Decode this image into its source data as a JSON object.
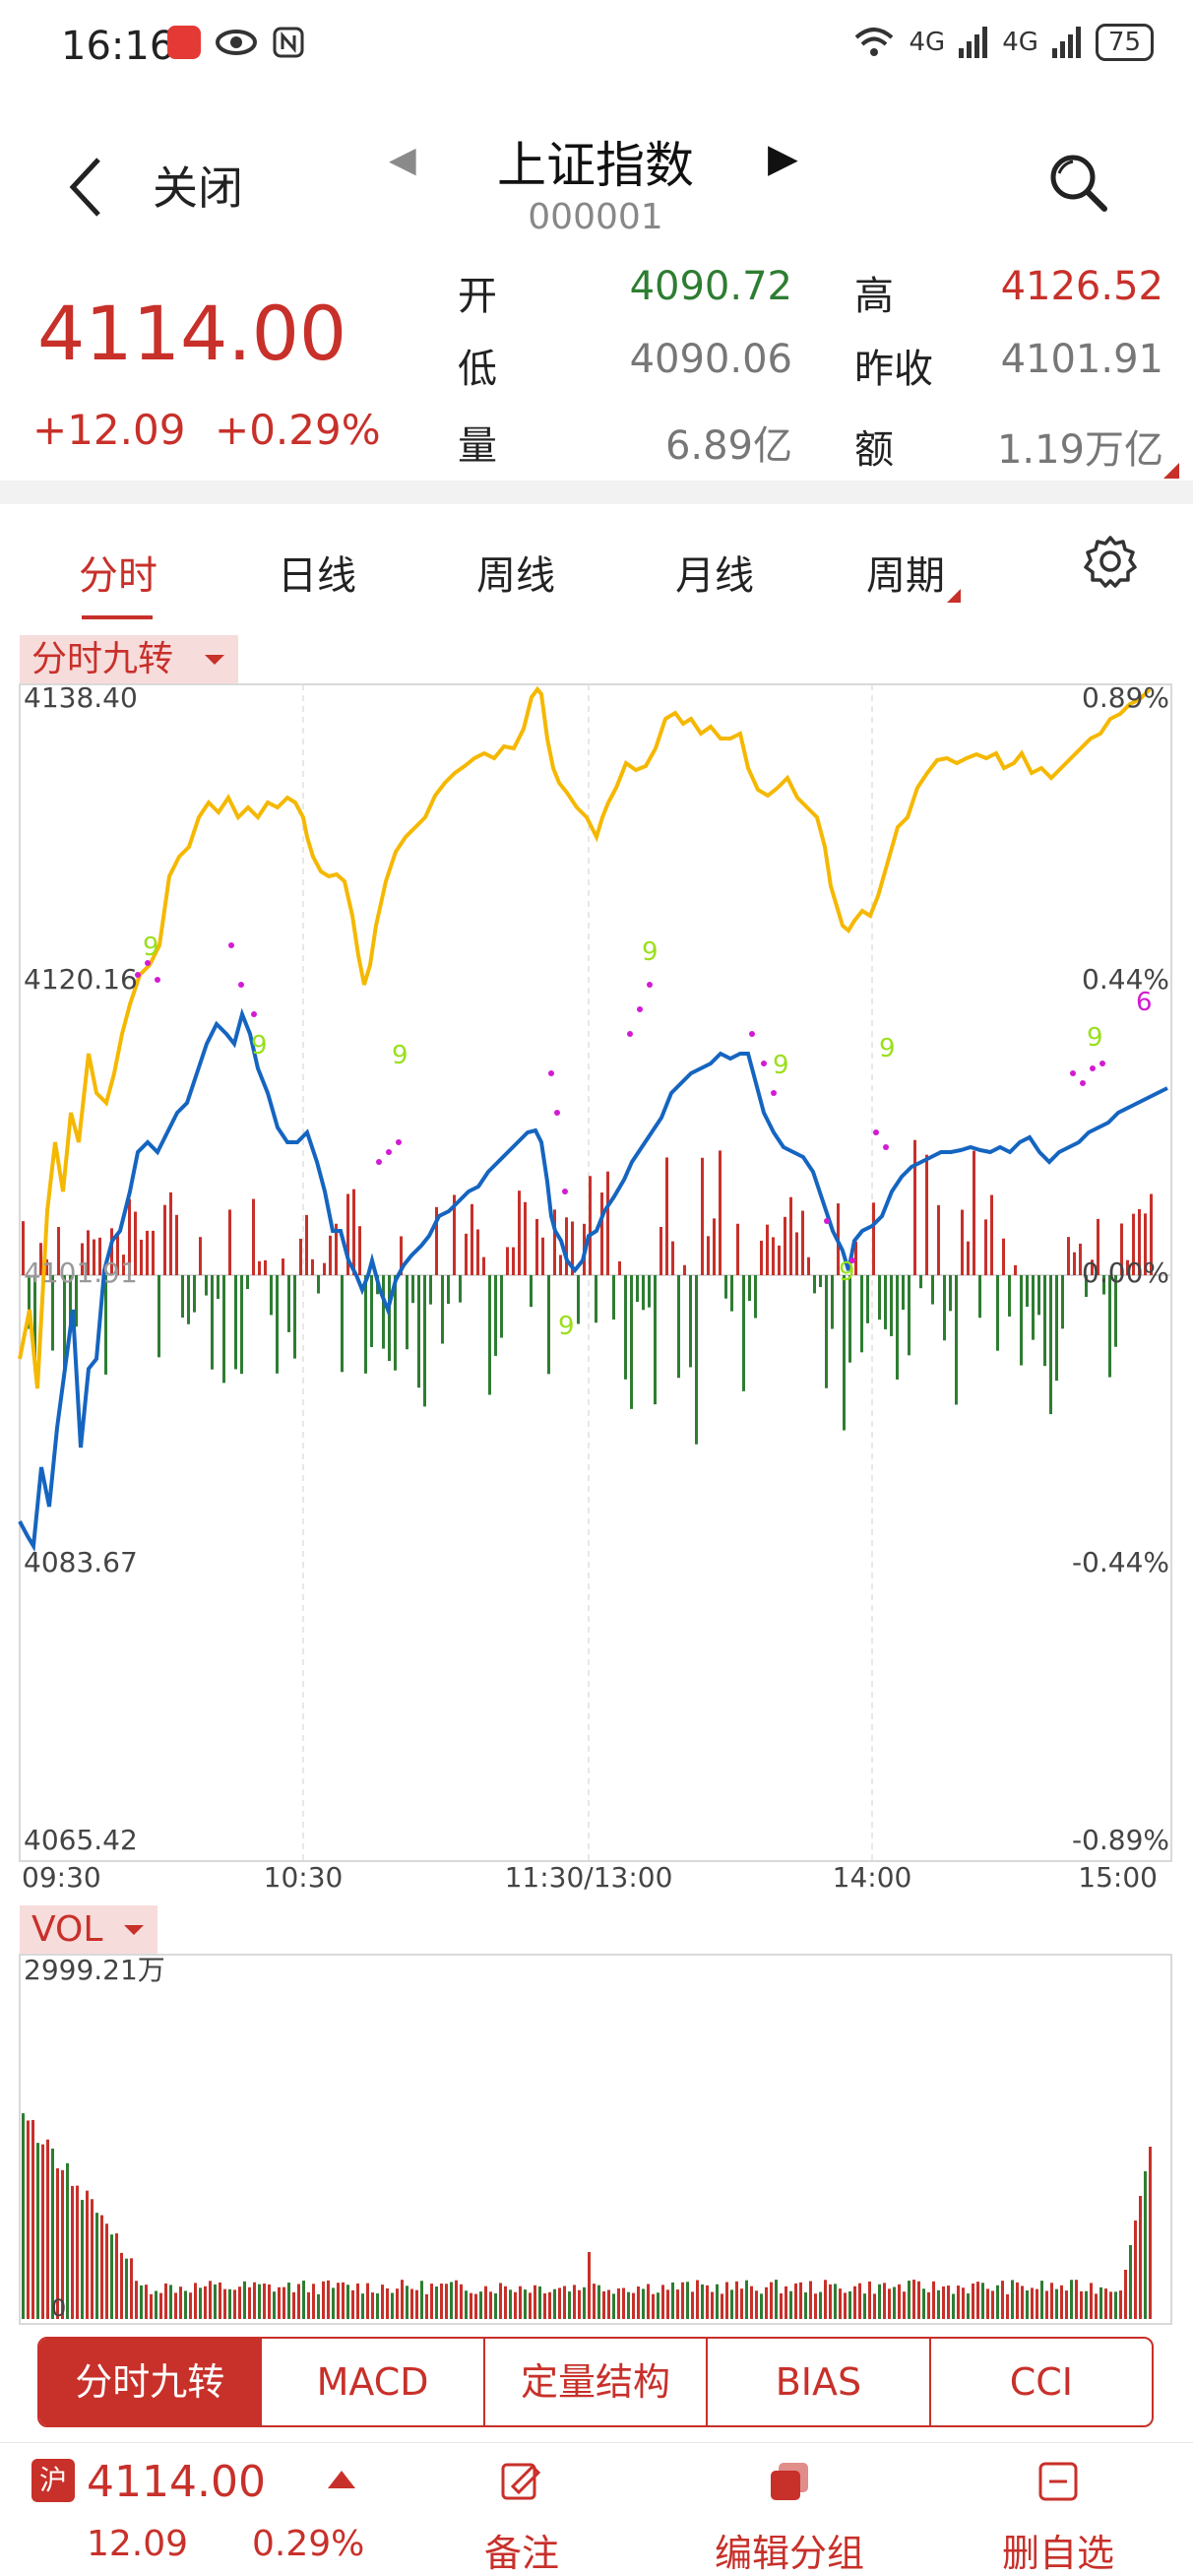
{
  "status_bar": {
    "time": "16:16",
    "signal_1": "4G",
    "signal_2": "4G",
    "battery": "75"
  },
  "header": {
    "close_label": "关闭",
    "title": "上证指数",
    "code": "000001"
  },
  "quote": {
    "price": "4114.00",
    "change_abs": "+12.09",
    "change_pct": "+0.29%",
    "open_label": "开",
    "open": "4090.72",
    "high_label": "高",
    "high": "4126.52",
    "low_label": "低",
    "low": "4090.06",
    "prev_close_label": "昨收",
    "prev_close": "4101.91",
    "volume_label": "量",
    "volume": "6.89亿",
    "amount_label": "额",
    "amount": "1.19万亿"
  },
  "tabs": [
    "分时",
    "日线",
    "周线",
    "月线",
    "周期"
  ],
  "indicator_tag": "分时九转",
  "vol_tag": "VOL",
  "chart_data": {
    "type": "line",
    "title": "上证指数 分时",
    "y_labels_left": [
      "4138.40",
      "4120.16",
      "4101.91",
      "4083.67",
      "4065.42"
    ],
    "y_labels_right": [
      "0.89%",
      "0.44%",
      "0.00%",
      "-0.44%",
      "-0.89%"
    ],
    "ylim": [
      4065.42,
      4138.4
    ],
    "x_labels": [
      "09:30",
      "10:30",
      "11:30/13:00",
      "14:00",
      "15:00"
    ],
    "series": [
      {
        "name": "price",
        "color": "#1565c0"
      },
      {
        "name": "average",
        "color": "#f5b800"
      }
    ],
    "nine_turn_labels": [
      "9",
      "9",
      "9",
      "9",
      "9",
      "9",
      "9",
      "9",
      "9",
      "6"
    ],
    "vol_max_label": "2999.21万",
    "vol_min_label": "0"
  },
  "bottom_tabs": [
    "分时九转",
    "MACD",
    "定量结构",
    "BIAS",
    "CCI"
  ],
  "footer": {
    "badge": "沪",
    "price": "4114.00",
    "change": "12.09",
    "pct": "0.29%",
    "note_label": "备注",
    "edit_group_label": "编辑分组",
    "remove_label": "删自选"
  }
}
